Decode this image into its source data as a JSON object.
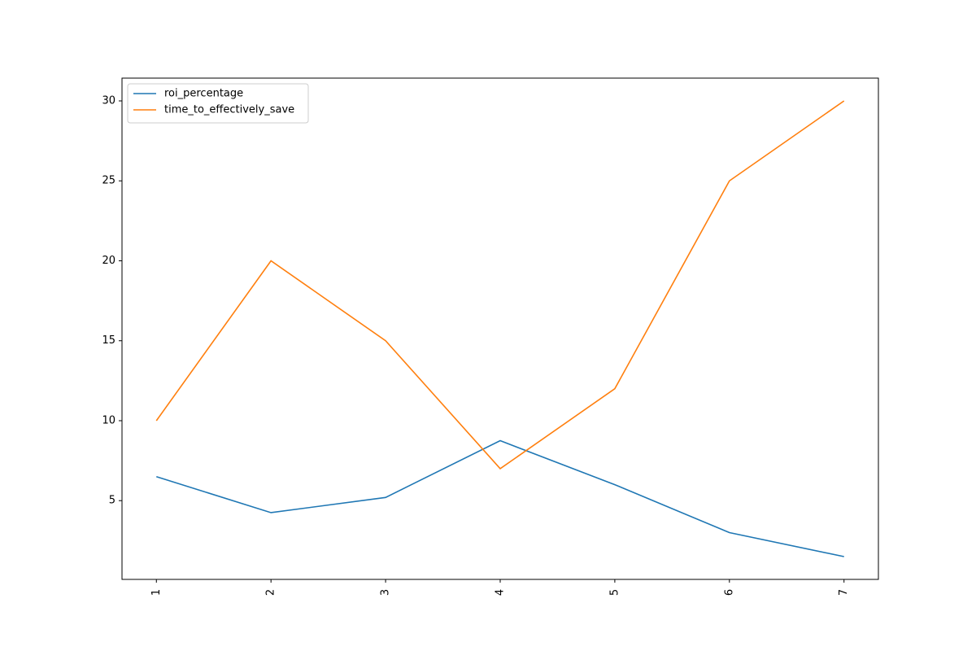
{
  "chart_data": {
    "type": "line",
    "x": [
      1,
      2,
      3,
      4,
      5,
      6,
      7
    ],
    "series": [
      {
        "name": "roi_percentage",
        "color": "#1f77b4",
        "values": [
          6.5,
          4.25,
          5.2,
          8.75,
          6.0,
          3.0,
          1.5
        ]
      },
      {
        "name": "time_to_effectively_save",
        "color": "#ff7f0e",
        "values": [
          10,
          20,
          15,
          7,
          12,
          25,
          30
        ]
      }
    ],
    "xlim": [
      0.7,
      7.3
    ],
    "xticks": [
      1,
      2,
      3,
      4,
      5,
      6,
      7
    ],
    "ylim": [
      0.075,
      31.425
    ],
    "yticks": [
      5,
      10,
      15,
      20,
      25,
      30
    ],
    "legend": "upper left",
    "grid": false
  }
}
